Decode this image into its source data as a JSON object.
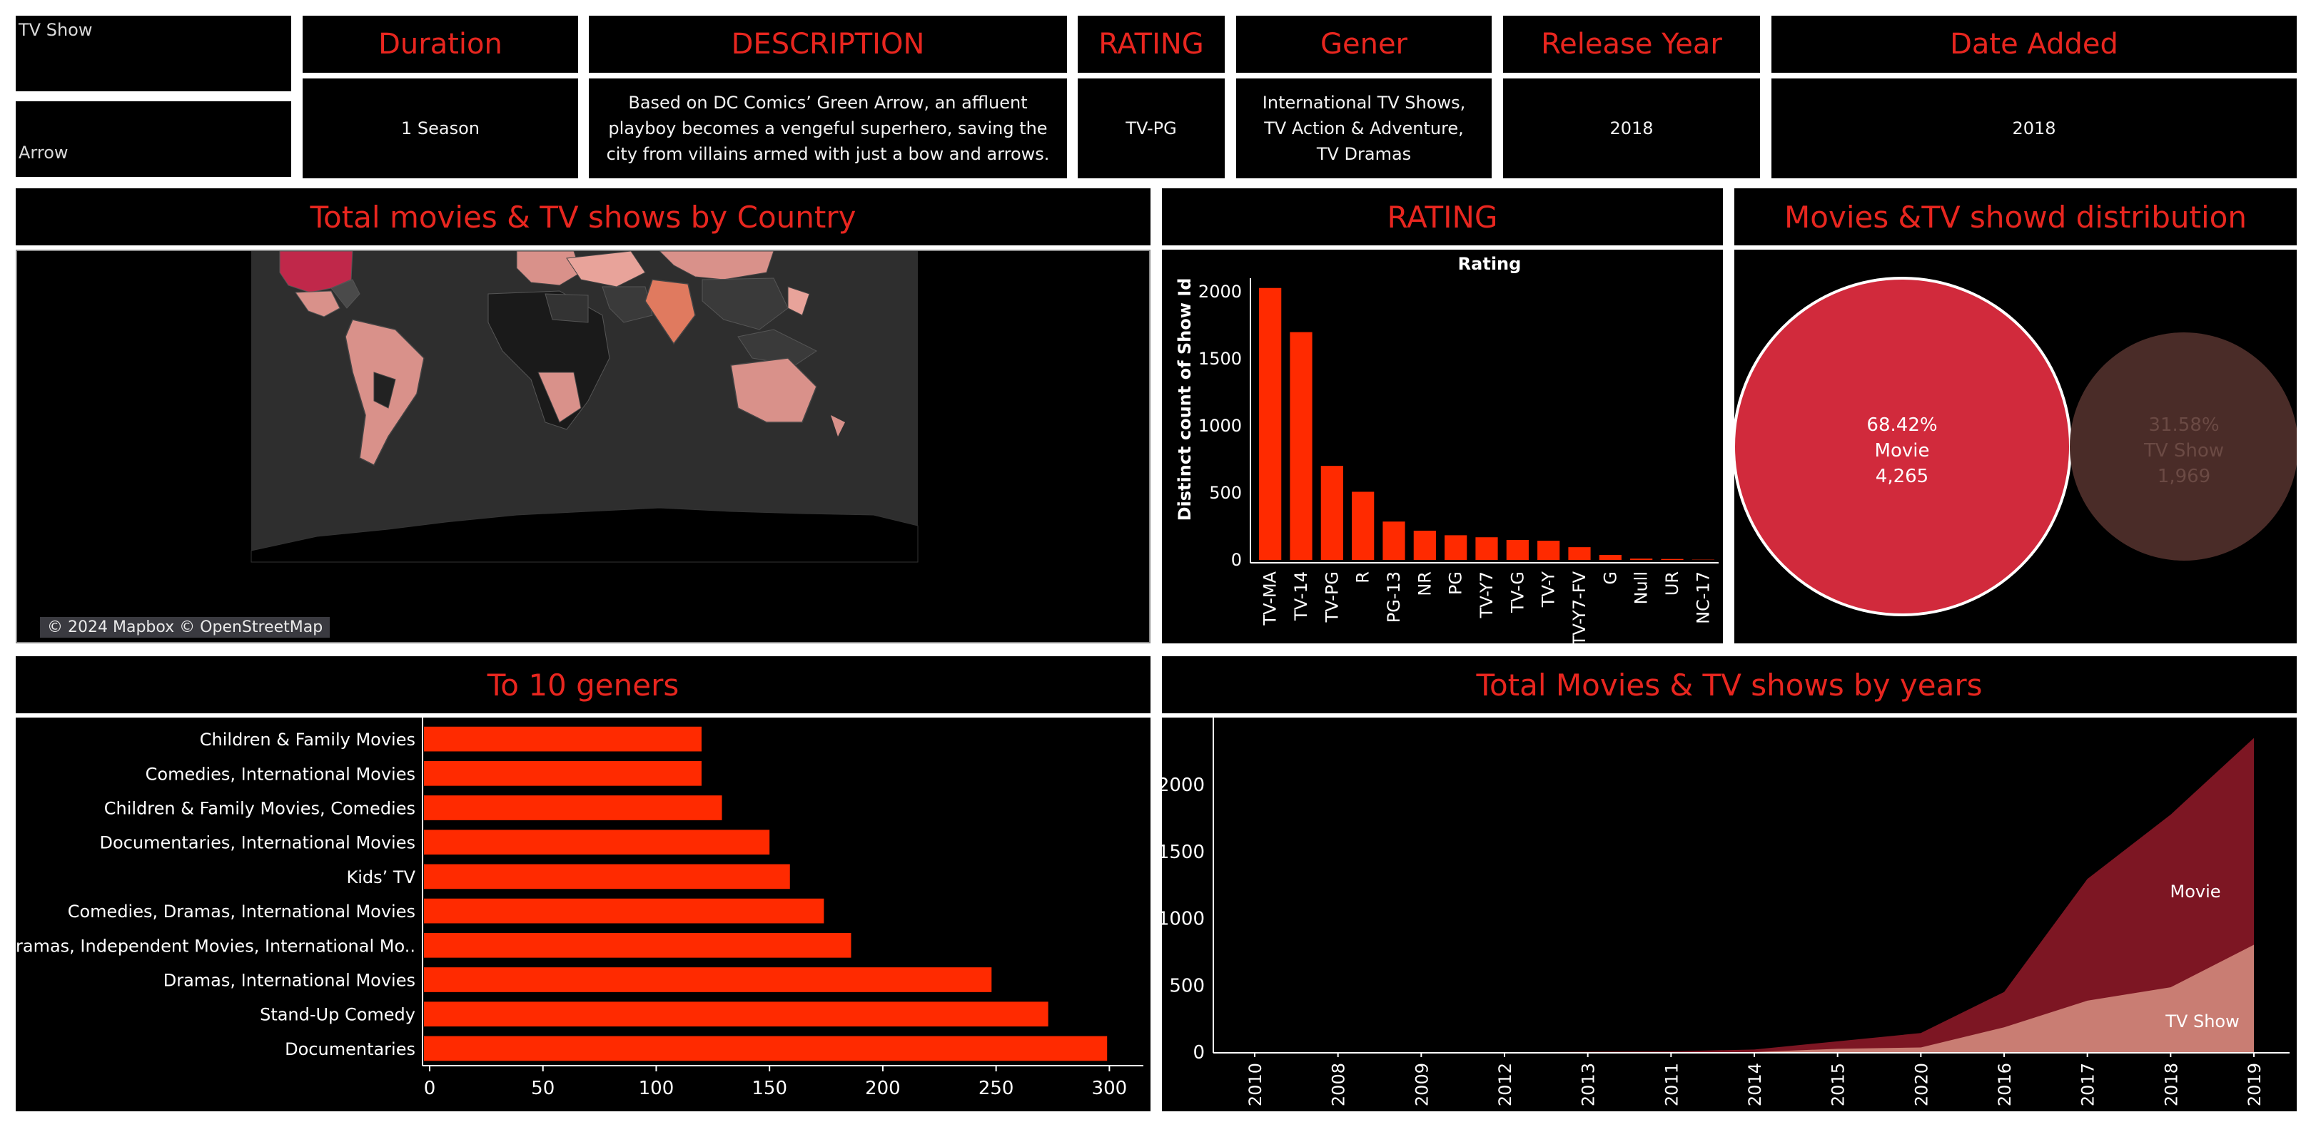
{
  "filters": {
    "type_label": "TV Show",
    "title_label": "Arrow"
  },
  "info_cards": {
    "duration": {
      "header": "Duration",
      "value": "1 Season"
    },
    "description": {
      "header": "DESCRIPTION",
      "value": "Based on DC Comics’ Green Arrow, an affluent playboy becomes a vengeful superhero, saving the city from villains armed with just a bow and arrows."
    },
    "rating": {
      "header": "RATING",
      "value": "TV-PG"
    },
    "genre": {
      "header": "Gener",
      "value": "International TV Shows, TV Action & Adventure, TV Dramas"
    },
    "release_year": {
      "header": "Release Year",
      "value": "2018"
    },
    "date_added": {
      "header": "Date Added",
      "value": "2018"
    }
  },
  "titles": {
    "map": "Total movies & TV shows by Country",
    "rating": "RATING",
    "distribution": "Movies &TV showd distribution",
    "genres": "To 10 geners",
    "years": "Total Movies & TV shows by years"
  },
  "map": {
    "attribution": "© 2024 Mapbox © OpenStreetMap",
    "highlight_color": "#c0284a",
    "mid_color": "#e07a5f",
    "low_color": "#d9918a"
  },
  "colors": {
    "accent": "#e8261f",
    "bar": "#ff2a00",
    "movie": "#d12a3c",
    "tvshow": "#4a2c28",
    "area_movie": "#7d1623",
    "area_tv": "#c97d73"
  },
  "chart_data": [
    {
      "type": "bar",
      "title": "Rating",
      "ylabel": "Distinct count of Show Id",
      "xlabel": "",
      "categories": [
        "TV-MA",
        "TV-14",
        "TV-PG",
        "R",
        "PG-13",
        "NR",
        "PG",
        "TV-Y7",
        "TV-G",
        "TV-Y",
        "TV-Y7-FV",
        "G",
        "Null",
        "UR",
        "NC-17"
      ],
      "values": [
        2027,
        1698,
        701,
        508,
        286,
        218,
        184,
        169,
        149,
        143,
        95,
        37,
        10,
        7,
        2
      ],
      "ylim": [
        0,
        2100
      ],
      "yticks": [
        0,
        500,
        1000,
        1500,
        2000
      ]
    },
    {
      "type": "pie",
      "slices": [
        {
          "label": "Movie",
          "percent": "68.42%",
          "value": "4,265"
        },
        {
          "label": "TV Show",
          "percent": "31.58%",
          "value": "1,969"
        }
      ]
    },
    {
      "type": "bar",
      "orientation": "horizontal",
      "categories": [
        "Children & Family Movies",
        "Comedies, International Movies",
        "Children & Family Movies, Comedies",
        "Documentaries, International Movies",
        "Kids’ TV",
        "Comedies, Dramas, International Movies",
        "Dramas, Independent Movies, International Mo..",
        "Dramas, International Movies",
        "Stand-Up Comedy",
        "Documentaries"
      ],
      "values": [
        120,
        120,
        129,
        150,
        159,
        174,
        186,
        248,
        273,
        299
      ],
      "xlim": [
        0,
        315
      ],
      "xticks": [
        0,
        50,
        100,
        150,
        200,
        250,
        300
      ]
    },
    {
      "type": "area",
      "categories": [
        "2010",
        "2008",
        "2009",
        "2012",
        "2013",
        "2011",
        "2014",
        "2015",
        "2020",
        "2016",
        "2017",
        "2018",
        "2019"
      ],
      "series": [
        {
          "name": "Movie",
          "values": [
            1,
            1,
            2,
            4,
            6,
            11,
            19,
            56,
            108,
            264,
            910,
            1291,
            1546
          ]
        },
        {
          "name": "TV Show",
          "values": [
            0,
            1,
            0,
            0,
            3,
            0,
            6,
            30,
            40,
            191,
            390,
            490,
            808
          ]
        }
      ],
      "stacked": true,
      "ylim": [
        0,
        2400
      ],
      "yticks": [
        0,
        500,
        1000,
        1500,
        2000
      ]
    }
  ]
}
